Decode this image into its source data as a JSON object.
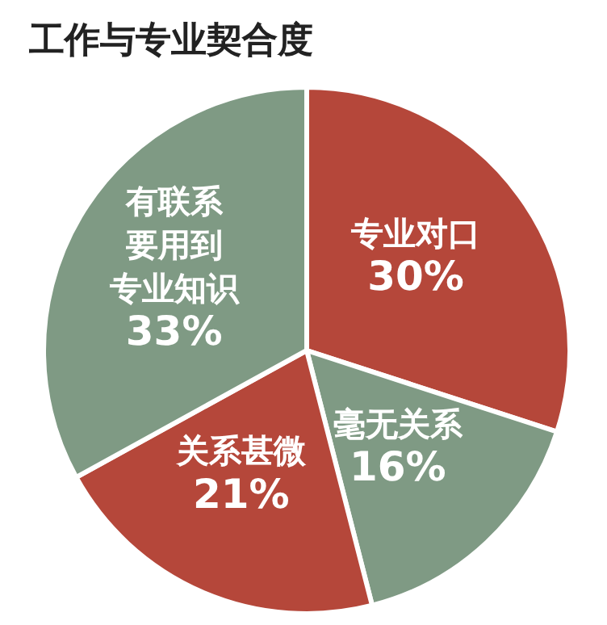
{
  "chart_data": {
    "type": "pie",
    "title": "工作与专业契合度",
    "categories": [
      "专业对口",
      "毫无关系",
      "关系甚微",
      "有联系要用到专业知识"
    ],
    "values": [
      30,
      16,
      21,
      33
    ],
    "value_labels": [
      "30%",
      "16%",
      "21%",
      "33%"
    ],
    "colors": [
      "#b5473a",
      "#7f9a84",
      "#b5473a",
      "#7f9a84"
    ],
    "legend": false
  }
}
